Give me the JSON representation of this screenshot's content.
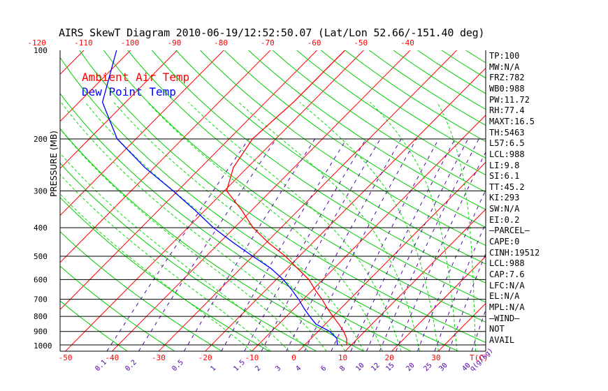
{
  "title": "AIRS SkewT Diagram 2010-06-19/12:52:50.07 (Lat/Lon 52.66/-151.40 deg)",
  "legend": {
    "temp": "Ambient Air Temp",
    "dew": "Dew Point Temp"
  },
  "colors": {
    "temp": "#ff0000",
    "dew": "#0000ff",
    "isotherm": "#ff0000",
    "dry_adiabat": "#00cc00",
    "moist_adiabat": "#00dd00",
    "mixing_ratio": "#5500aa",
    "isobar": "#000000",
    "temp_ticks": "#ff0000"
  },
  "indices": [
    "TP:100",
    "MW:N/A",
    "FRZ:782",
    "WB0:988",
    "PW:11.72",
    "RH:77.4",
    "MAXT:16.5",
    "TH:5463",
    "L57:6.5",
    "LCL:988",
    "LI:9.8",
    "SI:6.1",
    "TT:45.2",
    "KI:293",
    "SW:N/A",
    "EI:0.2",
    "—PARCEL—",
    "CAPE:0",
    "CINH:19512",
    "LCL:988",
    "CAP:7.6",
    "LFC:N/A",
    "EL:N/A",
    "MPL:N/A",
    "—WIND—",
    "NOT",
    "AVAIL"
  ],
  "chart_data": {
    "type": "line",
    "title": "AIRS SkewT Diagram 2010-06-19/12:52:50.07 (Lat/Lon 52.66/-151.40 deg)",
    "ylabel": "PRESSURE (MB)",
    "xlabel": "T(C)",
    "y_scale": "log",
    "ylim": [
      1050,
      100
    ],
    "pressure_ticks": [
      100,
      200,
      300,
      400,
      500,
      600,
      700,
      800,
      900,
      1000
    ],
    "top_temp_ticks": [
      -120,
      -110,
      -100,
      -90,
      -80,
      -70,
      -60,
      -50,
      -40
    ],
    "bottom_temp_ticks": [
      -50,
      -40,
      -30,
      -20,
      -10,
      0,
      10,
      20,
      30
    ],
    "bottom_temp_unit": "T(C)",
    "mixing_ratio_labels": [
      "0.1",
      "0.2",
      "0.5",
      "1",
      "1.5",
      "2",
      "3",
      "4",
      "6",
      "8",
      "10",
      "12",
      "15",
      "20",
      "25",
      "30",
      "40",
      "q(g/kg)"
    ],
    "series": [
      {
        "name": "Ambient Air Temp",
        "pressure": [
          1000,
          950,
          900,
          850,
          800,
          750,
          700,
          650,
          600,
          550,
          500,
          450,
          400,
          350,
          300,
          250,
          200,
          150,
          100
        ],
        "temperature": [
          9.0,
          7.6,
          5.5,
          2.9,
          0.0,
          -3.0,
          -6.0,
          -9.5,
          -13.0,
          -17.8,
          -23.0,
          -29.5,
          -36.0,
          -42.0,
          -49.5,
          -53.0,
          -55.0,
          -54.0,
          -54.0
        ]
      },
      {
        "name": "Dew Point Temp",
        "pressure": [
          1000,
          950,
          900,
          850,
          800,
          750,
          700,
          650,
          600,
          550,
          500,
          450,
          400,
          350,
          300,
          250,
          200,
          150,
          100
        ],
        "temperature": [
          7.0,
          5.5,
          2.5,
          -2.0,
          -5.0,
          -8.0,
          -11.0,
          -14.5,
          -18.5,
          -23.5,
          -30.0,
          -37.0,
          -44.5,
          -52.0,
          -61.0,
          -72.0,
          -84.0,
          -95.0,
          -103.0
        ]
      }
    ]
  }
}
